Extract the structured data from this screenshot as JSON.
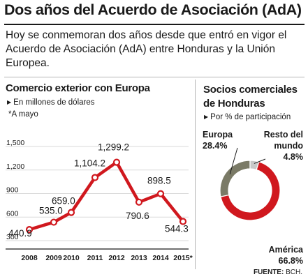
{
  "header": {
    "title": "Dos años del Acuerdo de Asociación (AdA)",
    "subtitle": "Hoy se conmemoran dos años desde que entró en vigor el Acuerdo de Asociación (AdA) entre Honduras y la Unión Europea."
  },
  "line_panel": {
    "title": "Comercio exterior con Europa",
    "unit_note": "En millones de dólares",
    "footnote": "*A mayo"
  },
  "pie_panel": {
    "title_line1": "Socios comerciales",
    "title_line2": "de Honduras",
    "unit_note": "Por % de participación"
  },
  "source": {
    "label": "FUENTE:",
    "value": "BCH."
  },
  "colors": {
    "line": "#d0181e",
    "grid": "#d9d9d9",
    "europa": "#7a7a66",
    "resto": "#c8c8c8",
    "america": "#d0181e"
  },
  "icons": {
    "bullet": "triangle-right-icon"
  },
  "chart_data": [
    {
      "type": "line",
      "ylim": [
        300,
        1500
      ],
      "yticks": [
        "300",
        "600",
        "900",
        "1,200",
        "1,500"
      ],
      "categories": [
        "2008",
        "2009",
        "2010",
        "2011",
        "2012",
        "2013",
        "2014",
        "2015*"
      ],
      "values": [
        440.9,
        535.0,
        659.0,
        1104.2,
        1299.2,
        790.6,
        898.5,
        544.3
      ],
      "data_labels": [
        "440.9",
        "535.0",
        "659.0",
        "1,104.2",
        "1,299.2",
        "790.6",
        "898.5",
        "544.3"
      ],
      "grid": true
    },
    {
      "type": "pie",
      "donut": true,
      "slices": [
        {
          "label": "Europa",
          "value": 28.4,
          "value_label": "28.4%"
        },
        {
          "label_line1": "Resto del",
          "label_line2": "mundo",
          "value": 4.8,
          "value_label": "4.8%"
        },
        {
          "label": "América",
          "value": 66.8,
          "value_label": "66.8%"
        }
      ]
    }
  ]
}
